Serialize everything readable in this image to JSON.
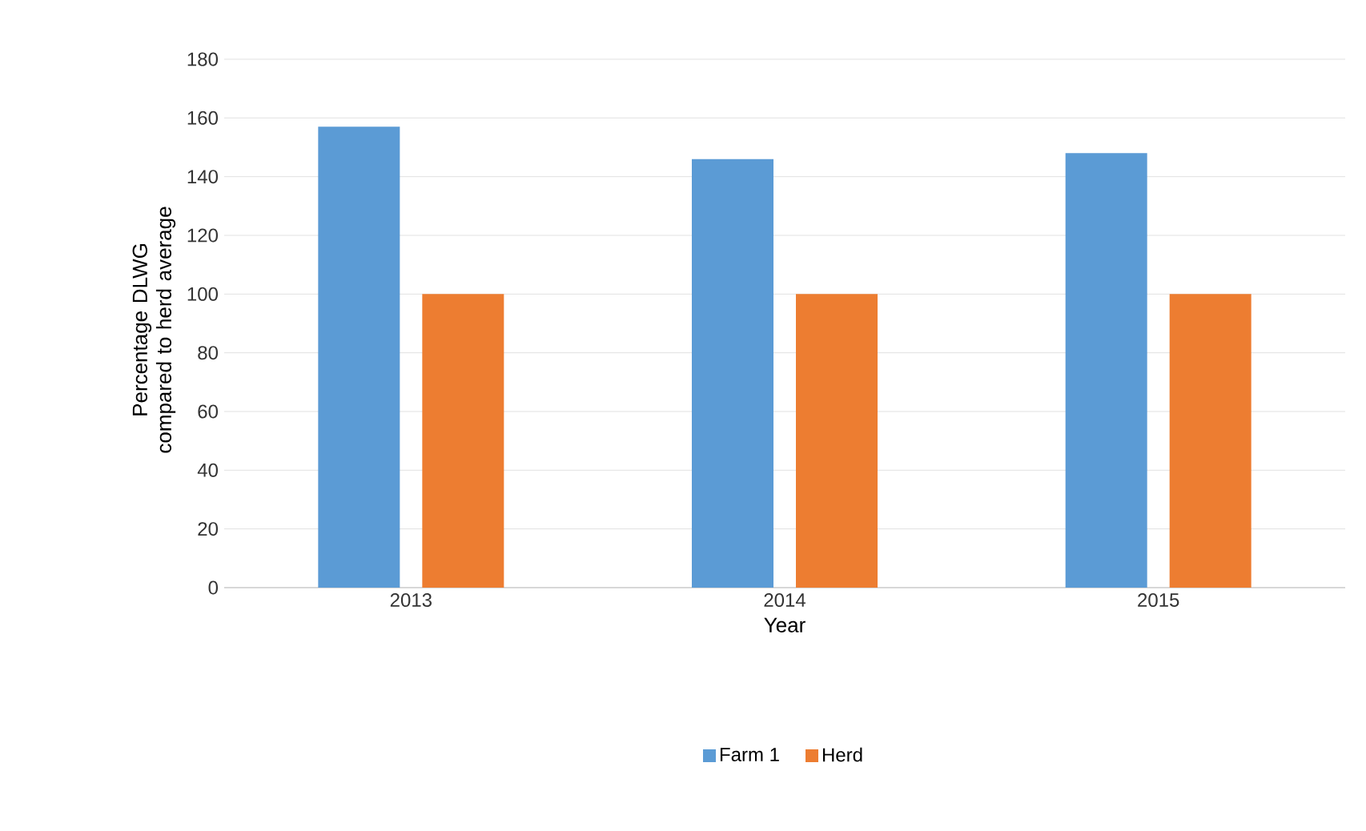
{
  "chart_data": {
    "type": "bar",
    "xlabel": "Year",
    "ylabel": "Percentage DLWG compared to herd average",
    "categories": [
      "2013",
      "2014",
      "2015"
    ],
    "series": [
      {
        "name": "Farm 1",
        "color": "#5b9bd5",
        "values": [
          157,
          146,
          148
        ]
      },
      {
        "name": "Herd",
        "color": "#ed7d31",
        "values": [
          100,
          100,
          100
        ]
      }
    ],
    "ylim": [
      0,
      180
    ],
    "yticks": [
      0,
      20,
      40,
      60,
      80,
      100,
      120,
      140,
      160,
      180
    ],
    "grid": "y",
    "legend": "bottom"
  }
}
